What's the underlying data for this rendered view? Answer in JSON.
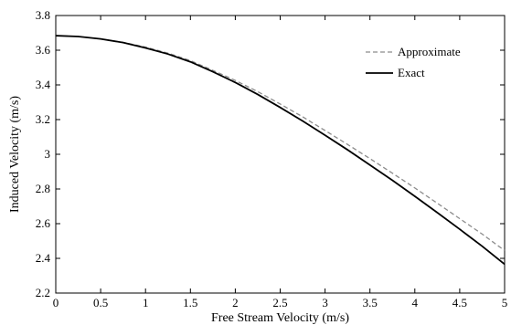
{
  "chart_data": {
    "type": "line",
    "xlabel": "Free Stream Velocity (m/s)",
    "ylabel": "Induced Velocity (m/s)",
    "xlim": [
      0,
      5
    ],
    "ylim": [
      2.2,
      3.8
    ],
    "xticks": [
      0,
      0.5,
      1,
      1.5,
      2,
      2.5,
      3,
      3.5,
      4,
      4.5,
      5
    ],
    "xtick_labels": [
      "0",
      "0.5",
      "1",
      "1.5",
      "2",
      "2.5",
      "3",
      "3.5",
      "4",
      "4.5",
      "5"
    ],
    "yticks": [
      2.2,
      2.4,
      2.6,
      2.8,
      3.0,
      3.2,
      3.4,
      3.6,
      3.8
    ],
    "ytick_labels": [
      "2.2",
      "2.4",
      "2.6",
      "2.8",
      "3",
      "3.2",
      "3.4",
      "3.6",
      "3.8"
    ],
    "grid": false,
    "legend_position": "top-right",
    "series": [
      {
        "name": "Approximate",
        "color": "#8c8c8c",
        "dash": "dashed",
        "x": [
          0,
          0.25,
          0.5,
          0.75,
          1,
          1.25,
          1.5,
          1.75,
          2,
          2.25,
          2.5,
          2.75,
          3,
          3.25,
          3.5,
          3.75,
          4,
          4.25,
          4.5,
          4.75,
          5
        ],
        "y": [
          3.684,
          3.679,
          3.665,
          3.645,
          3.618,
          3.583,
          3.54,
          3.484,
          3.426,
          3.361,
          3.29,
          3.216,
          3.137,
          3.057,
          2.975,
          2.891,
          2.806,
          2.718,
          2.629,
          2.54,
          2.445
        ]
      },
      {
        "name": "Exact",
        "color": "#000000",
        "dash": "solid",
        "x": [
          0,
          0.25,
          0.5,
          0.75,
          1,
          1.25,
          1.5,
          1.75,
          2,
          2.25,
          2.5,
          2.75,
          3,
          3.25,
          3.5,
          3.75,
          4,
          4.25,
          4.5,
          4.75,
          5
        ],
        "y": [
          3.684,
          3.679,
          3.665,
          3.644,
          3.613,
          3.578,
          3.533,
          3.476,
          3.414,
          3.345,
          3.27,
          3.192,
          3.11,
          3.026,
          2.938,
          2.85,
          2.758,
          2.664,
          2.568,
          2.47,
          2.366
        ]
      }
    ]
  }
}
